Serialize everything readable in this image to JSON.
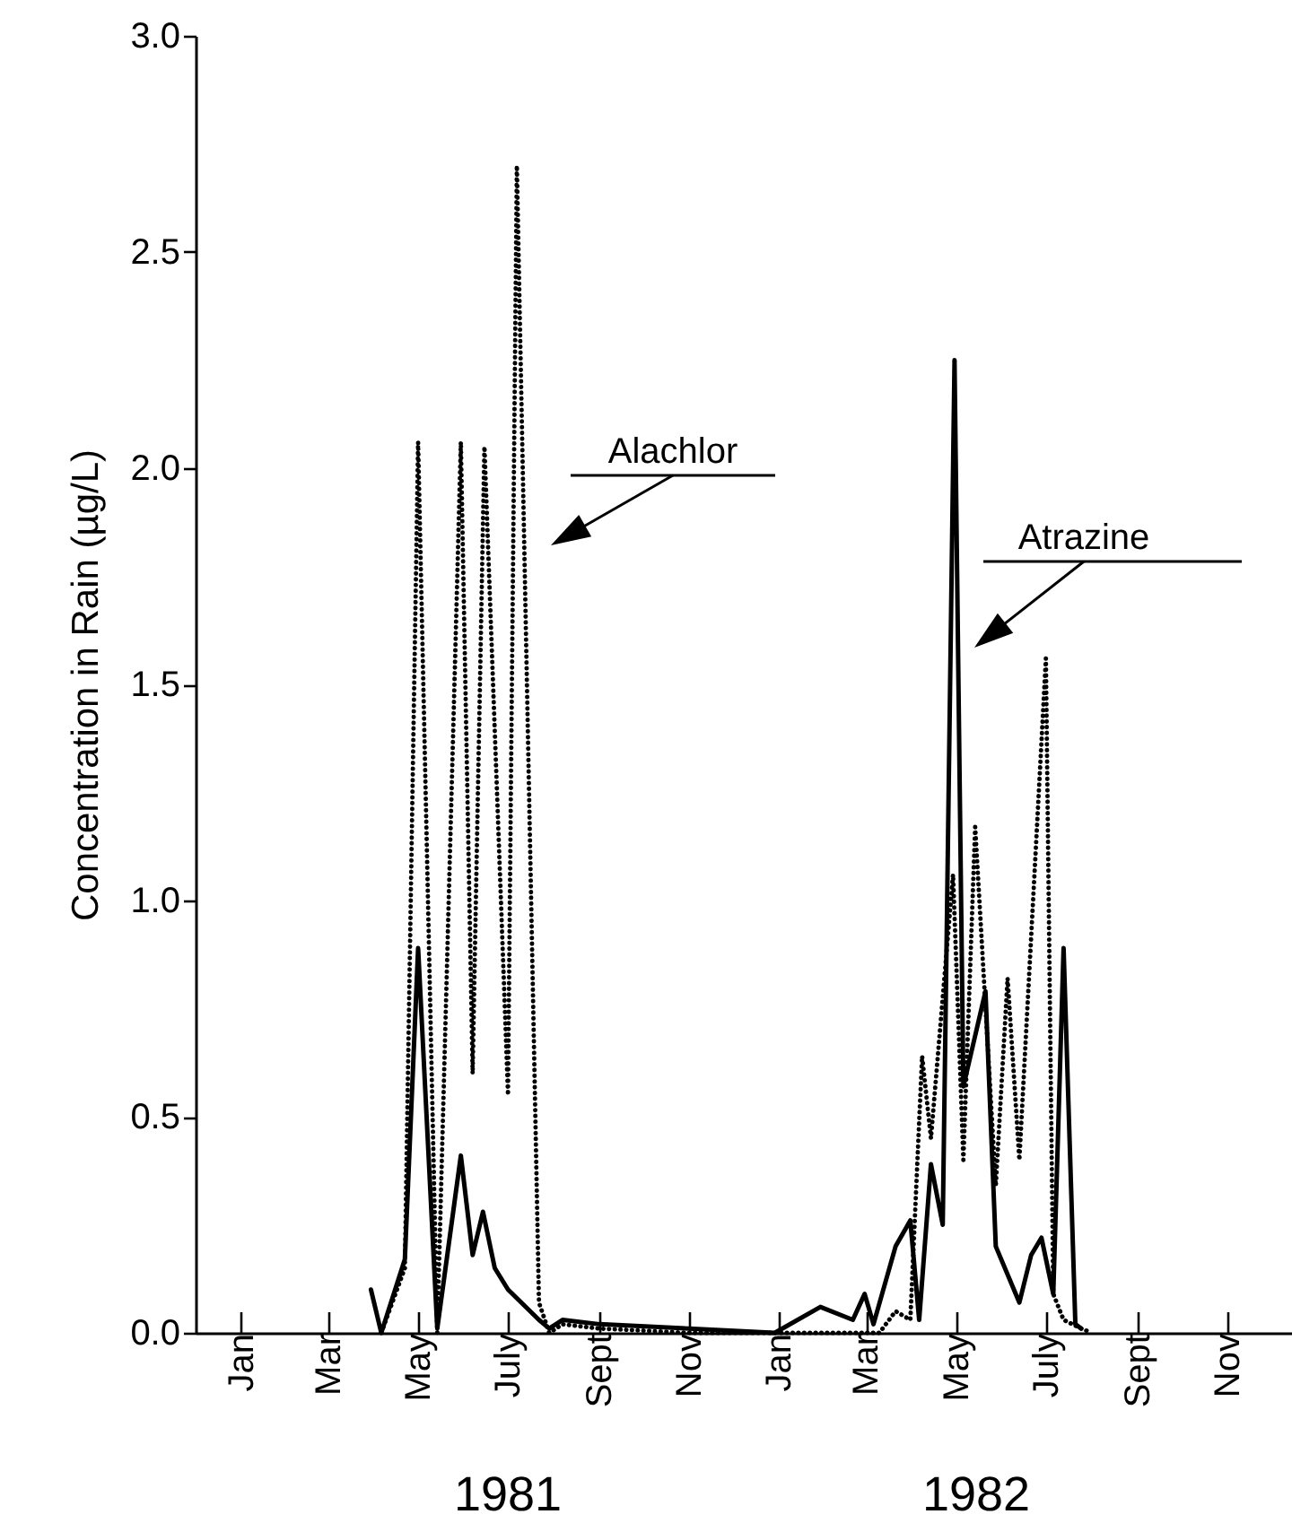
{
  "chart_data": {
    "type": "line",
    "ylabel": "Concentration in Rain (µg/L)",
    "xlim": [
      "1980-12-01",
      "1982-12-15"
    ],
    "xticks": [
      {
        "value": "1981-01-01",
        "label": "Jan"
      },
      {
        "value": "1981-03-01",
        "label": "Mar"
      },
      {
        "value": "1981-05-01",
        "label": "May"
      },
      {
        "value": "1981-07-01",
        "label": "July"
      },
      {
        "value": "1981-09-01",
        "label": "Sept"
      },
      {
        "value": "1981-11-01",
        "label": "Nov"
      },
      {
        "value": "1982-01-01",
        "label": "Jan"
      },
      {
        "value": "1982-03-01",
        "label": "Mar"
      },
      {
        "value": "1982-05-01",
        "label": "May"
      },
      {
        "value": "1982-07-01",
        "label": "July"
      },
      {
        "value": "1982-09-01",
        "label": "Sept"
      },
      {
        "value": "1982-11-01",
        "label": "Nov"
      }
    ],
    "ylim": [
      0,
      3.0
    ],
    "yticks": [
      {
        "value": 0,
        "label": "0.0"
      },
      {
        "value": 0.5,
        "label": "0.5"
      },
      {
        "value": 1,
        "label": "1.0"
      },
      {
        "value": 1.5,
        "label": "1.5"
      },
      {
        "value": 2,
        "label": "2.0"
      },
      {
        "value": 2.5,
        "label": "2.5"
      },
      {
        "value": 3,
        "label": "3.0"
      }
    ],
    "series": [
      {
        "color": "#000000",
        "line_style": "dotted",
        "x": [
          "1981-04-06",
          "1981-04-22",
          "1981-05-01",
          "1981-05-14",
          "1981-05-30",
          "1981-06-07",
          "1981-06-15",
          "1981-07-01",
          "1981-07-07",
          "1981-07-22",
          "1981-07-29",
          "1981-08-07",
          "1981-09-01",
          "1981-11-01",
          "1981-12-29",
          "1982-03-10",
          "1982-03-21",
          "1982-03-31",
          "1982-04-08",
          "1982-04-14",
          "1982-04-29",
          "1982-05-06",
          "1982-05-14",
          "1982-05-28",
          "1982-06-05",
          "1982-06-13",
          "1982-07-01",
          "1982-07-06",
          "1982-07-13",
          "1982-07-25",
          "1982-08-01"
        ],
        "values": [
          0.0,
          0.15,
          2.06,
          0.0,
          2.06,
          0.6,
          2.05,
          0.55,
          2.7,
          0.07,
          0.0,
          0.02,
          0.01,
          0.0,
          0.0,
          0.0,
          0.05,
          0.03,
          0.64,
          0.45,
          1.06,
          0.4,
          1.17,
          0.34,
          0.82,
          0.4,
          1.56,
          0.09,
          0.03,
          0.01,
          0.0
        ]
      },
      {
        "color": "#000000",
        "line_style": "solid",
        "x": [
          "1981-03-30",
          "1981-04-06",
          "1981-04-22",
          "1981-05-01",
          "1981-05-14",
          "1981-05-30",
          "1981-06-07",
          "1981-06-14",
          "1981-06-22",
          "1981-07-01",
          "1981-07-22",
          "1981-07-29",
          "1981-08-07",
          "1981-09-01",
          "1981-11-01",
          "1981-12-29",
          "1982-01-29",
          "1982-02-20",
          "1982-02-28",
          "1982-03-06",
          "1982-03-21",
          "1982-03-31",
          "1982-04-06",
          "1982-04-14",
          "1982-04-22",
          "1982-04-30",
          "1982-05-06",
          "1982-05-21",
          "1982-05-28",
          "1982-06-13",
          "1982-06-21",
          "1982-06-28",
          "1982-07-06",
          "1982-07-13",
          "1982-07-21",
          "1982-07-25"
        ],
        "values": [
          0.1,
          0.0,
          0.17,
          0.89,
          0.01,
          0.41,
          0.18,
          0.28,
          0.15,
          0.1,
          0.03,
          0.01,
          0.03,
          0.02,
          0.01,
          0.0,
          0.06,
          0.03,
          0.09,
          0.02,
          0.2,
          0.26,
          0.03,
          0.39,
          0.25,
          2.25,
          0.57,
          0.79,
          0.2,
          0.07,
          0.18,
          0.22,
          0.09,
          0.89,
          0.02,
          0.01
        ]
      }
    ],
    "annotations": [
      "Alachlor",
      "Atrazine",
      "1981",
      "1982"
    ]
  }
}
